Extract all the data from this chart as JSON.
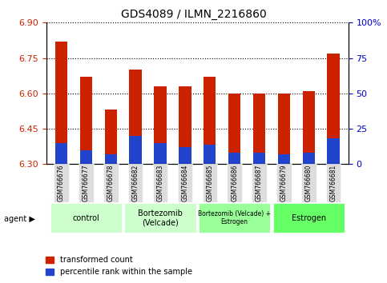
{
  "title": "GDS4089 / ILMN_2216860",
  "samples": [
    "GSM766676",
    "GSM766677",
    "GSM766678",
    "GSM766682",
    "GSM766683",
    "GSM766684",
    "GSM766685",
    "GSM766686",
    "GSM766687",
    "GSM766679",
    "GSM766680",
    "GSM766681"
  ],
  "red_values": [
    6.82,
    6.67,
    6.53,
    6.7,
    6.63,
    6.63,
    6.67,
    6.6,
    6.6,
    6.6,
    6.61,
    6.77
  ],
  "blue_values_pct": [
    15,
    10,
    7,
    20,
    15,
    12,
    14,
    8,
    8,
    7,
    8,
    18
  ],
  "y_min": 6.3,
  "y_max": 6.9,
  "y_ticks": [
    6.3,
    6.45,
    6.6,
    6.75,
    6.9
  ],
  "y2_ticks": [
    0,
    25,
    50,
    75,
    100
  ],
  "bar_color_red": "#cc2200",
  "bar_color_blue": "#2244cc",
  "bar_width": 0.5,
  "legend_red": "transformed count",
  "legend_blue": "percentile rank within the sample",
  "group_defs": [
    [
      0,
      2,
      "control",
      "#ccffcc"
    ],
    [
      3,
      5,
      "Bortezomib\n(Velcade)",
      "#ccffcc"
    ],
    [
      6,
      8,
      "Bortezomib (Velcade) +\nEstrogen",
      "#99ff99"
    ],
    [
      9,
      11,
      "Estrogen",
      "#66ff66"
    ]
  ]
}
